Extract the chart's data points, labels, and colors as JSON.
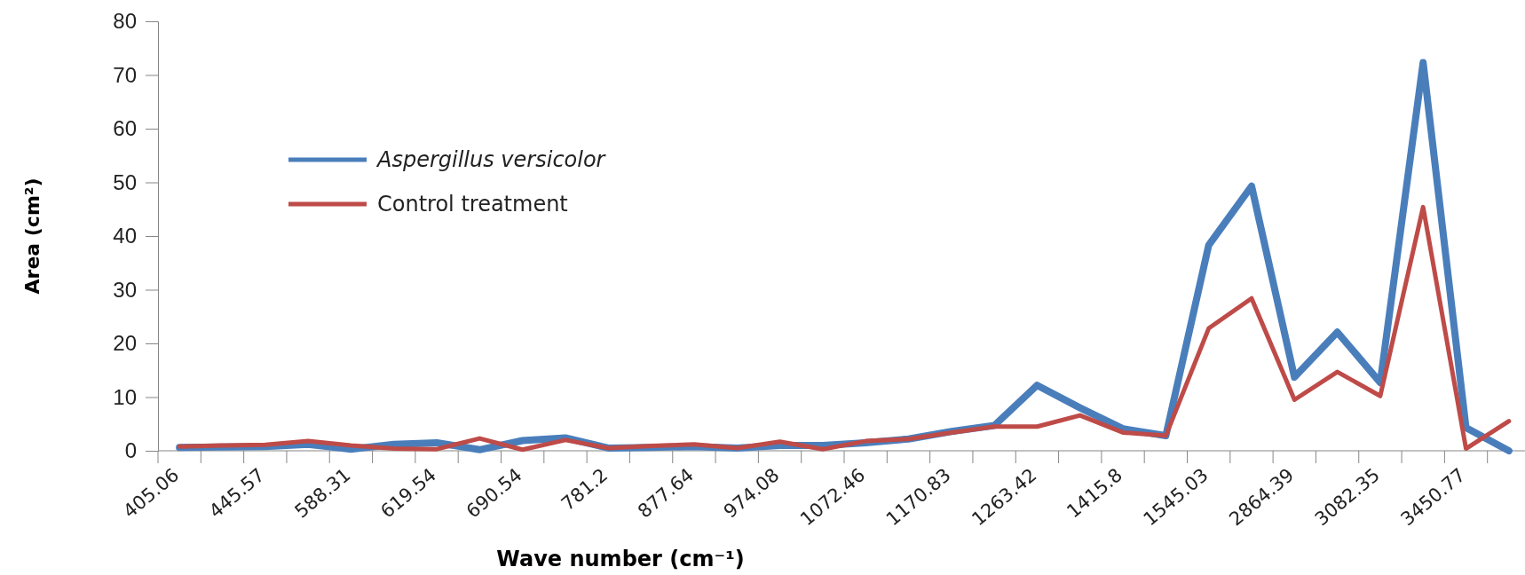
{
  "chart_data": {
    "type": "line",
    "xlabel": "Wave number (cm⁻¹)",
    "ylabel": "Area (cm²)",
    "categories": [
      "405.06",
      null,
      "445.57",
      null,
      "588.31",
      null,
      "619.54",
      null,
      "690.54",
      null,
      "781.2",
      null,
      "877.64",
      null,
      "974.08",
      null,
      "1072.46",
      null,
      "1170.83",
      null,
      "1263.42",
      null,
      "1415.8",
      null,
      "1545.03",
      null,
      "2864.39",
      null,
      "3082.35",
      null,
      "3450.77",
      null
    ],
    "series": [
      {
        "name": "Aspergillus versicolor",
        "color": "#4a7ebb",
        "values": [
          0.6,
          0.7,
          0.8,
          1.2,
          0.3,
          1.2,
          1.5,
          0.2,
          1.9,
          2.4,
          0.5,
          0.6,
          0.8,
          0.5,
          1.0,
          1.0,
          1.5,
          2.2,
          3.6,
          4.7,
          12.2,
          8.0,
          4.1,
          2.8,
          38.3,
          49.3,
          13.7,
          22.1,
          12.7,
          72.3,
          4.3,
          0
        ]
      },
      {
        "name": "Control treatment",
        "color": "#be4b48",
        "values": [
          0.8,
          1.0,
          1.1,
          1.8,
          1.0,
          0.4,
          0.3,
          2.3,
          0.2,
          2.0,
          0.5,
          0.9,
          1.2,
          0.5,
          1.7,
          0.3,
          1.8,
          2.2,
          3.4,
          4.5,
          4.5,
          6.6,
          3.4,
          2.8,
          22.8,
          28.4,
          9.5,
          14.7,
          10.2,
          45.4,
          0.4,
          5.5
        ]
      }
    ],
    "ylim": [
      0,
      80
    ],
    "yticks": [
      0,
      10,
      20,
      30,
      40,
      50,
      60,
      70,
      80
    ],
    "legend": "top left",
    "line_style": "solid"
  }
}
